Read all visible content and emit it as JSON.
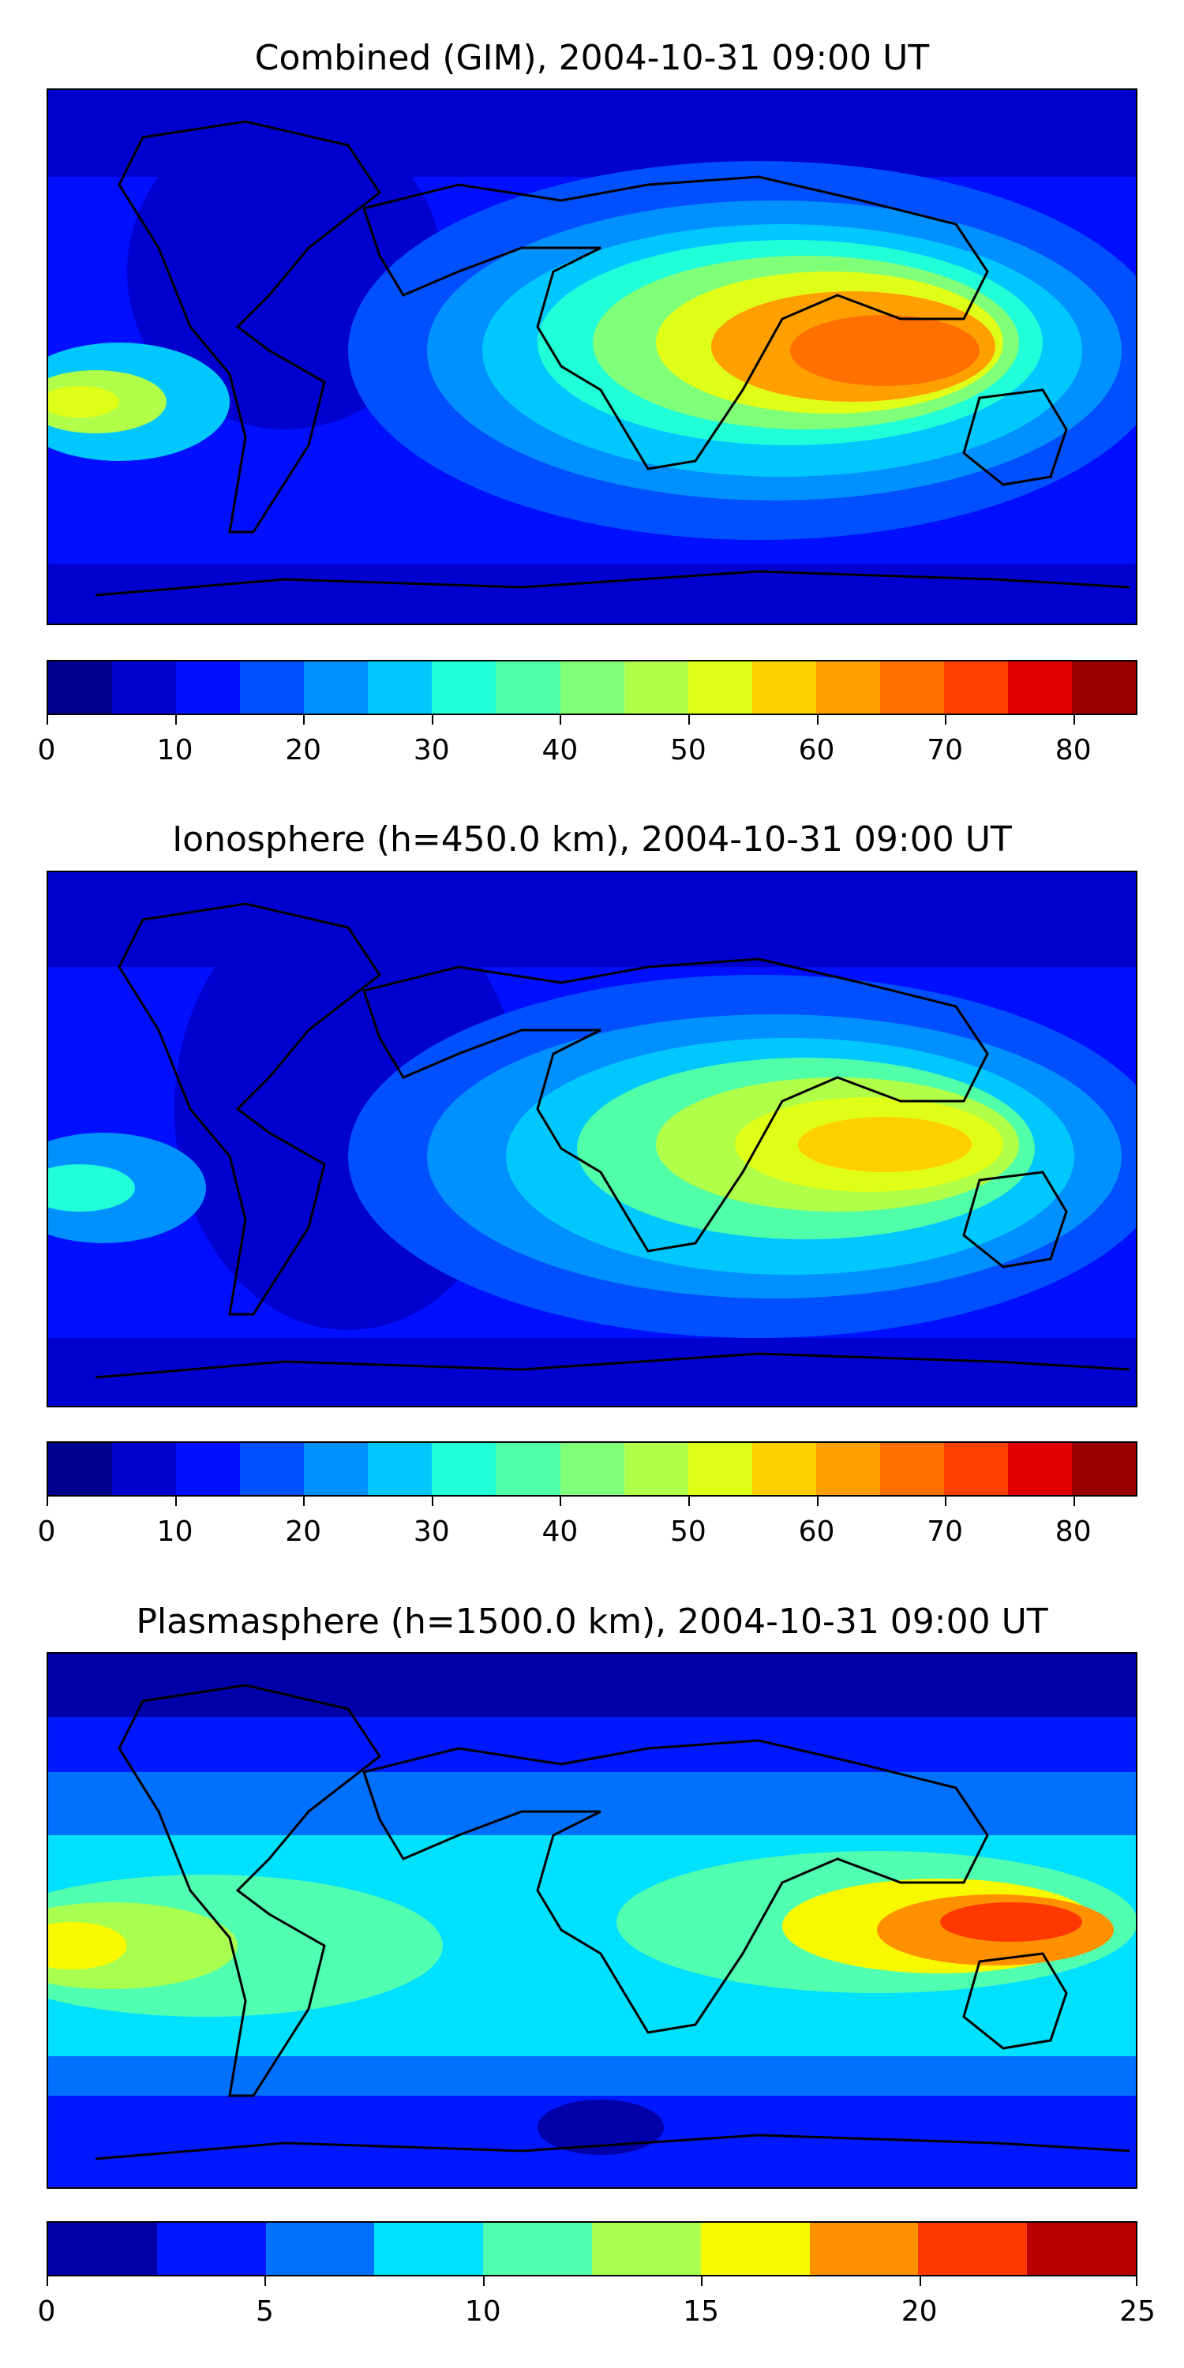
{
  "panels": [
    {
      "title": "Combined (GIM), 2004-10-31 09:00 UT",
      "colorbar": {
        "min": 0,
        "max": 85,
        "step": 5,
        "ticks": [
          "0",
          "10",
          "20",
          "30",
          "40",
          "50",
          "60",
          "70",
          "80"
        ],
        "tick_values": [
          0,
          10,
          20,
          30,
          40,
          50,
          60,
          70,
          80
        ]
      }
    },
    {
      "title": "Ionosphere  (h=450.0 km), 2004-10-31 09:00 UT",
      "colorbar": {
        "min": 0,
        "max": 85,
        "step": 5,
        "ticks": [
          "0",
          "10",
          "20",
          "30",
          "40",
          "50",
          "60",
          "70",
          "80"
        ],
        "tick_values": [
          0,
          10,
          20,
          30,
          40,
          50,
          60,
          70,
          80
        ]
      }
    },
    {
      "title": "Plasmasphere (h=1500.0 km), 2004-10-31 09:00 UT",
      "colorbar": {
        "min": 0,
        "max": 25,
        "step": 2.5,
        "ticks": [
          "0",
          "5",
          "10",
          "15",
          "20",
          "25"
        ],
        "tick_values": [
          0,
          5,
          10,
          15,
          20,
          25
        ]
      }
    }
  ],
  "colors": {
    "palette17": [
      "#00008f",
      "#0000cf",
      "#0010ff",
      "#0050ff",
      "#0090ff",
      "#00c8ff",
      "#20ffd8",
      "#50ffa8",
      "#80ff78",
      "#b0ff48",
      "#e0ff18",
      "#ffd000",
      "#ffa000",
      "#ff7000",
      "#ff4000",
      "#e00000",
      "#9a0000"
    ],
    "palette10": [
      "#0000a8",
      "#0018ff",
      "#0070ff",
      "#00e0ff",
      "#50ffb0",
      "#a8ff50",
      "#f8f800",
      "#ff9000",
      "#ff3800",
      "#b80000"
    ],
    "coastline": "#000000"
  }
}
